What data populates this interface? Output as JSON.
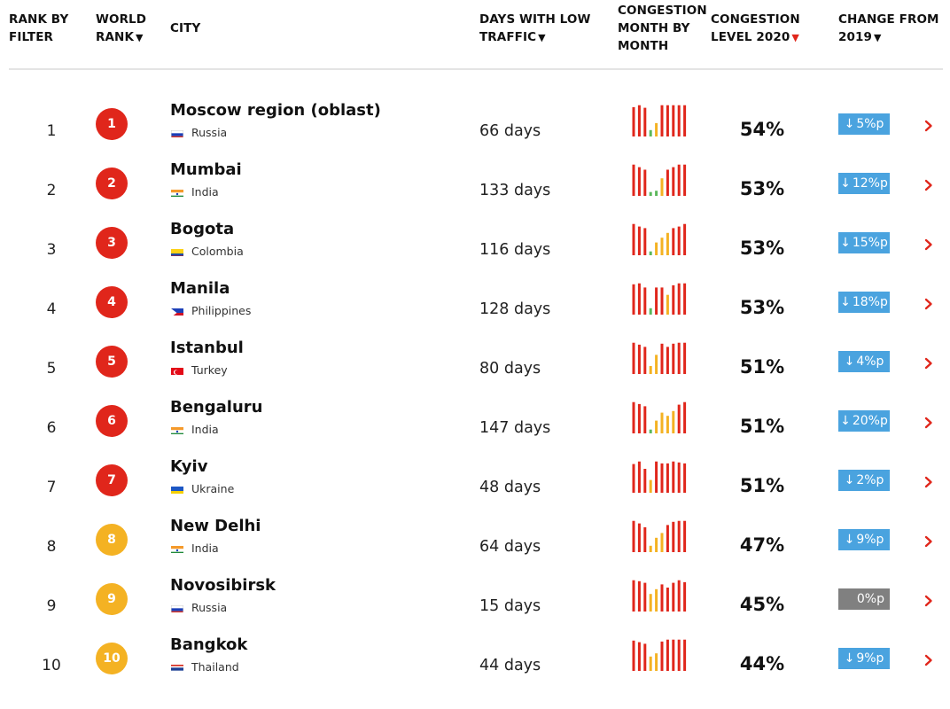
{
  "header": {
    "rank_by_filter": [
      "RANK BY",
      "FILTER"
    ],
    "world_rank": [
      "WORLD",
      "RANK"
    ],
    "city": "CITY",
    "days_low_traffic": [
      "DAYS WITH LOW",
      "TRAFFIC"
    ],
    "congestion_month": [
      "CONGESTION",
      "MONTH BY",
      "MONTH"
    ],
    "congestion_level": [
      "CONGESTION",
      "LEVEL 2020"
    ],
    "change": [
      "CHANGE FROM",
      "2019"
    ],
    "sort_icon": "triangle-down",
    "active_sort_color": "#e0261b"
  },
  "colors": {
    "red": "#e0261b",
    "yellow": "#f4b223",
    "green": "#5cb85c",
    "blue": "#4aa3df",
    "grey": "#808080"
  },
  "rows": [
    {
      "rank": "1",
      "world_rank": "1",
      "badge": "red",
      "city": "Moscow region (oblast)",
      "country": "Russia",
      "flag": "russia",
      "days": "66 days",
      "level": "54%",
      "change": "5%p",
      "change_dir": "down",
      "change_style": "blue",
      "monthly": [
        {
          "v": 0.92,
          "c": "r"
        },
        {
          "v": 0.98,
          "c": "r"
        },
        {
          "v": 0.9,
          "c": "r"
        },
        {
          "v": 0.2,
          "c": "g"
        },
        {
          "v": 0.42,
          "c": "y"
        },
        {
          "v": 0.98,
          "c": "r"
        },
        {
          "v": 0.98,
          "c": "r"
        },
        {
          "v": 0.98,
          "c": "r"
        },
        {
          "v": 0.98,
          "c": "r"
        },
        {
          "v": 0.98,
          "c": "r"
        }
      ]
    },
    {
      "rank": "2",
      "world_rank": "2",
      "badge": "red",
      "city": "Mumbai",
      "country": "India",
      "flag": "india",
      "days": "133 days",
      "level": "53%",
      "change": "12%p",
      "change_dir": "down",
      "change_style": "blue",
      "monthly": [
        {
          "v": 0.98,
          "c": "r"
        },
        {
          "v": 0.9,
          "c": "r"
        },
        {
          "v": 0.82,
          "c": "r"
        },
        {
          "v": 0.12,
          "c": "g"
        },
        {
          "v": 0.16,
          "c": "g"
        },
        {
          "v": 0.55,
          "c": "y"
        },
        {
          "v": 0.82,
          "c": "r"
        },
        {
          "v": 0.9,
          "c": "r"
        },
        {
          "v": 0.98,
          "c": "r"
        },
        {
          "v": 0.98,
          "c": "r"
        }
      ]
    },
    {
      "rank": "3",
      "world_rank": "3",
      "badge": "red",
      "city": "Bogota",
      "country": "Colombia",
      "flag": "colombia",
      "days": "116 days",
      "level": "53%",
      "change": "15%p",
      "change_dir": "down",
      "change_style": "blue",
      "monthly": [
        {
          "v": 0.98,
          "c": "r"
        },
        {
          "v": 0.9,
          "c": "r"
        },
        {
          "v": 0.85,
          "c": "r"
        },
        {
          "v": 0.12,
          "c": "g"
        },
        {
          "v": 0.4,
          "c": "y"
        },
        {
          "v": 0.55,
          "c": "y"
        },
        {
          "v": 0.7,
          "c": "y"
        },
        {
          "v": 0.85,
          "c": "r"
        },
        {
          "v": 0.9,
          "c": "r"
        },
        {
          "v": 0.98,
          "c": "r"
        }
      ]
    },
    {
      "rank": "4",
      "world_rank": "4",
      "badge": "red",
      "city": "Manila",
      "country": "Philippines",
      "flag": "philippines",
      "days": "128 days",
      "level": "53%",
      "change": "18%p",
      "change_dir": "down",
      "change_style": "blue",
      "monthly": [
        {
          "v": 0.95,
          "c": "r"
        },
        {
          "v": 0.98,
          "c": "r"
        },
        {
          "v": 0.85,
          "c": "r"
        },
        {
          "v": 0.2,
          "c": "g"
        },
        {
          "v": 0.85,
          "c": "r"
        },
        {
          "v": 0.85,
          "c": "r"
        },
        {
          "v": 0.62,
          "c": "y"
        },
        {
          "v": 0.92,
          "c": "r"
        },
        {
          "v": 0.98,
          "c": "r"
        },
        {
          "v": 0.98,
          "c": "r"
        }
      ]
    },
    {
      "rank": "5",
      "world_rank": "5",
      "badge": "red",
      "city": "Istanbul",
      "country": "Turkey",
      "flag": "turkey",
      "days": "80 days",
      "level": "51%",
      "change": "4%p",
      "change_dir": "down",
      "change_style": "blue",
      "monthly": [
        {
          "v": 0.98,
          "c": "r"
        },
        {
          "v": 0.92,
          "c": "r"
        },
        {
          "v": 0.85,
          "c": "r"
        },
        {
          "v": 0.25,
          "c": "y"
        },
        {
          "v": 0.6,
          "c": "y"
        },
        {
          "v": 0.95,
          "c": "r"
        },
        {
          "v": 0.85,
          "c": "r"
        },
        {
          "v": 0.95,
          "c": "r"
        },
        {
          "v": 0.98,
          "c": "r"
        },
        {
          "v": 0.98,
          "c": "r"
        }
      ]
    },
    {
      "rank": "6",
      "world_rank": "6",
      "badge": "red",
      "city": "Bengaluru",
      "country": "India",
      "flag": "india",
      "days": "147 days",
      "level": "51%",
      "change": "20%p",
      "change_dir": "down",
      "change_style": "blue",
      "monthly": [
        {
          "v": 0.98,
          "c": "r"
        },
        {
          "v": 0.92,
          "c": "r"
        },
        {
          "v": 0.85,
          "c": "r"
        },
        {
          "v": 0.12,
          "c": "g"
        },
        {
          "v": 0.4,
          "c": "y"
        },
        {
          "v": 0.65,
          "c": "y"
        },
        {
          "v": 0.55,
          "c": "y"
        },
        {
          "v": 0.7,
          "c": "y"
        },
        {
          "v": 0.9,
          "c": "r"
        },
        {
          "v": 0.98,
          "c": "r"
        }
      ]
    },
    {
      "rank": "7",
      "world_rank": "7",
      "badge": "red",
      "city": "Kyiv",
      "country": "Ukraine",
      "flag": "ukraine",
      "days": "48 days",
      "level": "51%",
      "change": "2%p",
      "change_dir": "down",
      "change_style": "blue",
      "monthly": [
        {
          "v": 0.9,
          "c": "r"
        },
        {
          "v": 0.98,
          "c": "r"
        },
        {
          "v": 0.75,
          "c": "r"
        },
        {
          "v": 0.4,
          "c": "y"
        },
        {
          "v": 0.98,
          "c": "r"
        },
        {
          "v": 0.92,
          "c": "r"
        },
        {
          "v": 0.92,
          "c": "r"
        },
        {
          "v": 0.98,
          "c": "r"
        },
        {
          "v": 0.95,
          "c": "r"
        },
        {
          "v": 0.92,
          "c": "r"
        }
      ]
    },
    {
      "rank": "8",
      "world_rank": "8",
      "badge": "yellow",
      "city": "New Delhi",
      "country": "India",
      "flag": "india",
      "days": "64 days",
      "level": "47%",
      "change": "9%p",
      "change_dir": "down",
      "change_style": "blue",
      "monthly": [
        {
          "v": 0.98,
          "c": "r"
        },
        {
          "v": 0.9,
          "c": "r"
        },
        {
          "v": 0.78,
          "c": "r"
        },
        {
          "v": 0.2,
          "c": "y"
        },
        {
          "v": 0.45,
          "c": "y"
        },
        {
          "v": 0.6,
          "c": "y"
        },
        {
          "v": 0.85,
          "c": "r"
        },
        {
          "v": 0.95,
          "c": "r"
        },
        {
          "v": 0.98,
          "c": "r"
        },
        {
          "v": 0.98,
          "c": "r"
        }
      ]
    },
    {
      "rank": "9",
      "world_rank": "9",
      "badge": "yellow",
      "city": "Novosibirsk",
      "country": "Russia",
      "flag": "russia",
      "days": "15 days",
      "level": "45%",
      "change": "0%p",
      "change_dir": "none",
      "change_style": "grey",
      "monthly": [
        {
          "v": 0.98,
          "c": "r"
        },
        {
          "v": 0.95,
          "c": "r"
        },
        {
          "v": 0.9,
          "c": "r"
        },
        {
          "v": 0.55,
          "c": "y"
        },
        {
          "v": 0.7,
          "c": "y"
        },
        {
          "v": 0.85,
          "c": "r"
        },
        {
          "v": 0.75,
          "c": "r"
        },
        {
          "v": 0.9,
          "c": "r"
        },
        {
          "v": 0.98,
          "c": "r"
        },
        {
          "v": 0.92,
          "c": "r"
        }
      ]
    },
    {
      "rank": "10",
      "world_rank": "10",
      "badge": "yellow",
      "city": "Bangkok",
      "country": "Thailand",
      "flag": "thailand",
      "days": "44 days",
      "level": "44%",
      "change": "9%p",
      "change_dir": "down",
      "change_style": "blue",
      "monthly": [
        {
          "v": 0.95,
          "c": "r"
        },
        {
          "v": 0.9,
          "c": "r"
        },
        {
          "v": 0.85,
          "c": "r"
        },
        {
          "v": 0.45,
          "c": "y"
        },
        {
          "v": 0.55,
          "c": "y"
        },
        {
          "v": 0.92,
          "c": "r"
        },
        {
          "v": 0.98,
          "c": "r"
        },
        {
          "v": 0.98,
          "c": "r"
        },
        {
          "v": 0.98,
          "c": "r"
        },
        {
          "v": 0.98,
          "c": "r"
        }
      ]
    }
  ]
}
